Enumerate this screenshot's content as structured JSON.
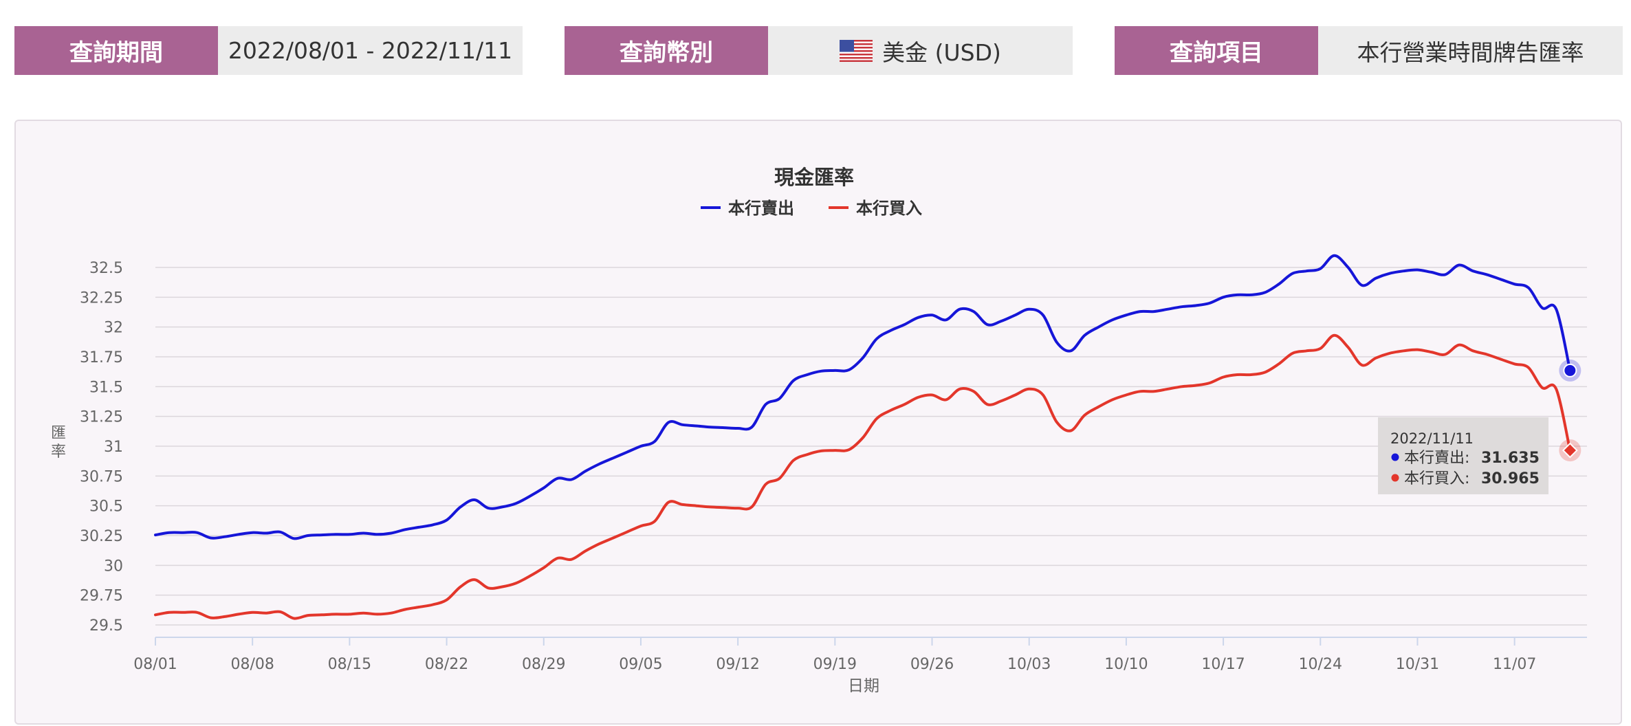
{
  "filters": [
    {
      "label": "查詢期間",
      "value": "2022/08/01 - 2022/11/11"
    },
    {
      "label": "查詢幣別",
      "value": "美金 (USD)",
      "icon": "us-flag-icon"
    },
    {
      "label": "查詢項目",
      "value": "本行營業時間牌告匯率"
    }
  ],
  "colors": {
    "accent": "#a96393",
    "sell": "#1616d8",
    "buy": "#e3362b"
  },
  "chart_data": {
    "type": "line",
    "title": "現金匯率",
    "xlabel": "日期",
    "ylabel": "匯率",
    "legend_position": "top-center",
    "grid": true,
    "ylim": [
      29.5,
      32.5
    ],
    "yticks": [
      "32.5",
      "32.25",
      "32",
      "31.75",
      "31.5",
      "31.25",
      "31",
      "30.75",
      "30.5",
      "30.25",
      "30",
      "29.75",
      "29.5"
    ],
    "xtick_labels": [
      "08/01",
      "08/08",
      "08/15",
      "08/22",
      "08/29",
      "09/05",
      "09/12",
      "09/19",
      "09/26",
      "10/03",
      "10/10",
      "10/17",
      "10/24",
      "10/31",
      "11/07"
    ],
    "x": [
      "08/01",
      "08/02",
      "08/03",
      "08/04",
      "08/05",
      "08/06",
      "08/07",
      "08/08",
      "08/09",
      "08/10",
      "08/11",
      "08/12",
      "08/13",
      "08/14",
      "08/15",
      "08/16",
      "08/17",
      "08/18",
      "08/19",
      "08/20",
      "08/21",
      "08/22",
      "08/23",
      "08/24",
      "08/25",
      "08/26",
      "08/27",
      "08/28",
      "08/29",
      "08/30",
      "08/31",
      "09/01",
      "09/02",
      "09/03",
      "09/04",
      "09/05",
      "09/06",
      "09/07",
      "09/08",
      "09/09",
      "09/10",
      "09/11",
      "09/12",
      "09/13",
      "09/14",
      "09/15",
      "09/16",
      "09/17",
      "09/18",
      "09/19",
      "09/20",
      "09/21",
      "09/22",
      "09/23",
      "09/24",
      "09/25",
      "09/26",
      "09/27",
      "09/28",
      "09/29",
      "09/30",
      "10/01",
      "10/02",
      "10/03",
      "10/04",
      "10/05",
      "10/06",
      "10/07",
      "10/08",
      "10/09",
      "10/10",
      "10/11",
      "10/12",
      "10/13",
      "10/14",
      "10/15",
      "10/16",
      "10/17",
      "10/18",
      "10/19",
      "10/20",
      "10/21",
      "10/22",
      "10/23",
      "10/24",
      "10/25",
      "10/26",
      "10/27",
      "10/28",
      "10/29",
      "10/30",
      "10/31",
      "11/01",
      "11/02",
      "11/03",
      "11/04",
      "11/05",
      "11/06",
      "11/07",
      "11/08",
      "11/09",
      "11/10",
      "11/11"
    ],
    "series": [
      {
        "name": "本行賣出",
        "color": "#1616d8",
        "values": [
          30.255,
          30.275,
          30.275,
          30.275,
          30.23,
          30.24,
          30.26,
          30.275,
          30.27,
          30.28,
          30.225,
          30.25,
          30.255,
          30.26,
          30.26,
          30.27,
          30.26,
          30.27,
          30.3,
          30.32,
          30.34,
          30.38,
          30.49,
          30.55,
          30.48,
          30.49,
          30.52,
          30.58,
          30.65,
          30.73,
          30.72,
          30.79,
          30.85,
          30.9,
          30.95,
          31.0,
          31.04,
          31.2,
          31.18,
          31.17,
          31.16,
          31.155,
          31.15,
          31.16,
          31.35,
          31.4,
          31.55,
          31.6,
          31.63,
          31.635,
          31.64,
          31.74,
          31.9,
          31.97,
          32.02,
          32.08,
          32.1,
          32.06,
          32.15,
          32.13,
          32.02,
          32.05,
          32.1,
          32.15,
          32.1,
          31.87,
          31.8,
          31.93,
          32.0,
          32.06,
          32.1,
          32.13,
          32.13,
          32.15,
          32.17,
          32.18,
          32.2,
          32.25,
          32.27,
          32.27,
          32.29,
          32.36,
          32.45,
          32.47,
          32.49,
          32.6,
          32.5,
          32.35,
          32.41,
          32.45,
          32.47,
          32.48,
          32.46,
          32.44,
          32.52,
          32.47,
          32.44,
          32.4,
          32.36,
          32.33,
          32.16,
          32.15,
          31.635
        ]
      },
      {
        "name": "本行買入",
        "color": "#e3362b",
        "values": [
          29.585,
          29.605,
          29.605,
          29.605,
          29.56,
          29.57,
          29.59,
          29.605,
          29.6,
          29.61,
          29.555,
          29.58,
          29.585,
          29.59,
          29.59,
          29.6,
          29.59,
          29.6,
          29.63,
          29.65,
          29.67,
          29.71,
          29.82,
          29.88,
          29.81,
          29.82,
          29.85,
          29.91,
          29.98,
          30.06,
          30.05,
          30.12,
          30.18,
          30.23,
          30.28,
          30.33,
          30.37,
          30.53,
          30.51,
          30.5,
          30.49,
          30.485,
          30.48,
          30.49,
          30.68,
          30.73,
          30.88,
          30.93,
          30.96,
          30.965,
          30.97,
          31.07,
          31.23,
          31.3,
          31.35,
          31.41,
          31.43,
          31.39,
          31.48,
          31.46,
          31.35,
          31.38,
          31.43,
          31.48,
          31.43,
          31.2,
          31.13,
          31.26,
          31.33,
          31.39,
          31.43,
          31.46,
          31.46,
          31.48,
          31.5,
          31.51,
          31.53,
          31.58,
          31.6,
          31.6,
          31.62,
          31.69,
          31.78,
          31.8,
          31.82,
          31.93,
          31.83,
          31.68,
          31.74,
          31.78,
          31.8,
          31.81,
          31.79,
          31.77,
          31.85,
          31.8,
          31.77,
          31.73,
          31.69,
          31.66,
          31.49,
          31.48,
          30.965
        ]
      }
    ]
  },
  "tooltip": {
    "date": "2022/11/11",
    "rows": [
      {
        "label": "本行賣出:",
        "value": "31.635",
        "color": "#1616d8"
      },
      {
        "label": "本行買入:",
        "value": "30.965",
        "color": "#e3362b"
      }
    ]
  }
}
